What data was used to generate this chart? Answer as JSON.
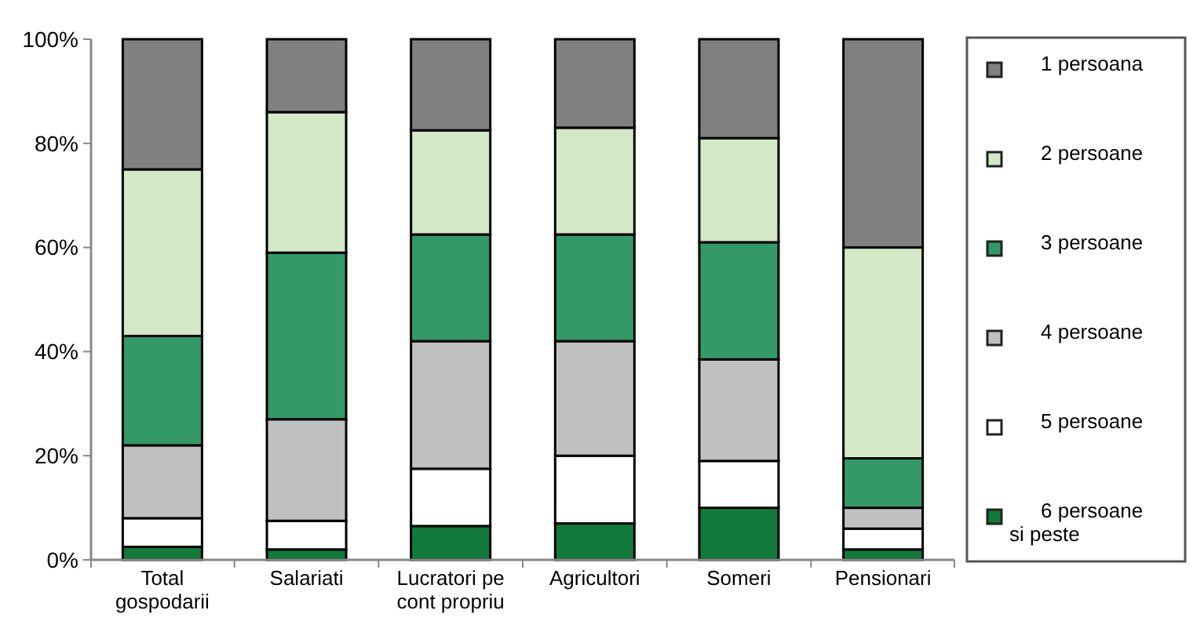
{
  "chart_data": {
    "type": "bar",
    "stacked": true,
    "categories": [
      "Total gospodarii",
      "Salariati",
      "Lucratori pe cont propriu",
      "Agricultori",
      "Someri",
      "Pensionari"
    ],
    "series": [
      {
        "name": "6 persoane si peste",
        "color": "#117a3a",
        "values": [
          2.5,
          2,
          6.5,
          7,
          10,
          2
        ]
      },
      {
        "name": "5 persoane",
        "color": "#ffffff",
        "values": [
          5.5,
          5.5,
          11,
          13,
          9,
          4
        ]
      },
      {
        "name": "4 persoane",
        "color": "#c0c0c0",
        "values": [
          14,
          19.5,
          24.5,
          22,
          19.5,
          4
        ]
      },
      {
        "name": "3 persoane",
        "color": "#339966",
        "values": [
          21,
          32,
          20.5,
          20.5,
          22.5,
          9.5
        ]
      },
      {
        "name": "2 persoane",
        "color": "#d3e8c6",
        "values": [
          32,
          27,
          20,
          20.5,
          20,
          40.5
        ]
      },
      {
        "name": "1 persoana",
        "color": "#808080",
        "values": [
          25,
          14,
          17.5,
          17,
          19,
          40
        ]
      }
    ],
    "ylim": [
      0,
      100
    ],
    "yticks": [
      {
        "value": 0,
        "label": "0%"
      },
      {
        "value": 20,
        "label": "20%"
      },
      {
        "value": 40,
        "label": "40%"
      },
      {
        "value": 60,
        "label": "60%"
      },
      {
        "value": 80,
        "label": "80%"
      },
      {
        "value": 100,
        "label": "100%"
      }
    ],
    "legend": "right"
  }
}
